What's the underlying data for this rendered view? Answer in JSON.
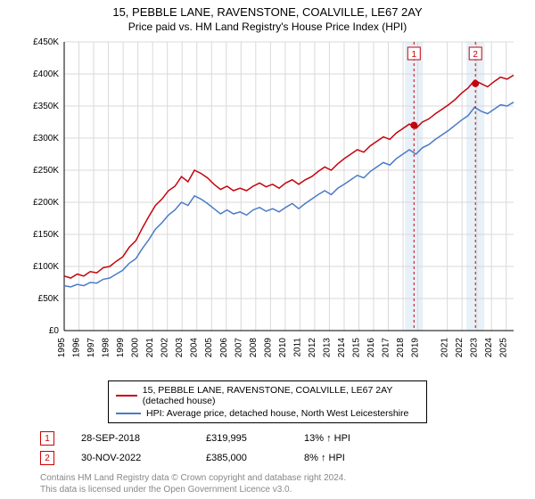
{
  "title": "15, PEBBLE LANE, RAVENSTONE, COALVILLE, LE67 2AY",
  "subtitle": "Price paid vs. HM Land Registry's House Price Index (HPI)",
  "chart": {
    "type": "line",
    "background_color": "#ffffff",
    "grid_color": "#d9d9d9",
    "axis_color": "#000000",
    "tick_font_size": 10,
    "ylabel_prefix": "£",
    "ylabel_suffix": "K",
    "ylim": [
      0,
      450
    ],
    "ytick_step": 50,
    "x_years": [
      1995,
      1996,
      1997,
      1998,
      1999,
      2000,
      2001,
      2002,
      2003,
      2004,
      2005,
      2006,
      2007,
      2008,
      2009,
      2010,
      2011,
      2012,
      2013,
      2014,
      2015,
      2016,
      2017,
      2018,
      2019,
      2021,
      2022,
      2023,
      2024,
      2025
    ],
    "series": [
      {
        "name": "15, PEBBLE LANE, RAVENSTONE, COALVILLE, LE67 2AY (detached house)",
        "color": "#c4040d",
        "line_width": 1.5,
        "values": [
          85,
          82,
          88,
          85,
          92,
          90,
          98,
          100,
          108,
          115,
          130,
          140,
          160,
          178,
          195,
          205,
          218,
          225,
          240,
          232,
          250,
          245,
          238,
          228,
          220,
          225,
          218,
          222,
          218,
          225,
          230,
          224,
          228,
          222,
          230,
          235,
          228,
          235,
          240,
          248,
          255,
          250,
          260,
          268,
          275,
          282,
          278,
          288,
          295,
          302,
          298,
          308,
          315,
          322,
          315,
          325,
          330,
          338,
          345,
          352,
          360,
          370,
          378,
          390,
          385,
          380,
          388,
          395,
          392,
          398
        ]
      },
      {
        "name": "HPI: Average price, detached house, North West Leicestershire",
        "color": "#4a7bc8",
        "line_width": 1.5,
        "values": [
          70,
          68,
          72,
          70,
          75,
          74,
          80,
          82,
          88,
          94,
          105,
          112,
          128,
          142,
          158,
          168,
          180,
          188,
          200,
          195,
          210,
          205,
          198,
          190,
          182,
          188,
          182,
          185,
          180,
          188,
          192,
          186,
          190,
          185,
          192,
          198,
          190,
          198,
          205,
          212,
          218,
          212,
          222,
          228,
          235,
          242,
          238,
          248,
          255,
          262,
          258,
          268,
          275,
          282,
          275,
          285,
          290,
          298,
          305,
          312,
          320,
          328,
          335,
          348,
          342,
          338,
          345,
          352,
          350,
          356
        ]
      }
    ],
    "markers": [
      {
        "num": "1",
        "year_frac": 2018.74,
        "value": 320,
        "band_color": "#e8f0f8",
        "dash_color": "#c4040d"
      },
      {
        "num": "2",
        "year_frac": 2022.91,
        "value": 385,
        "band_color": "#e8f0f8",
        "dash_color": "#c4040d"
      }
    ],
    "marker_box_border": "#c4040d",
    "marker_box_text": "#c4040d"
  },
  "legend": {
    "series1": "15, PEBBLE LANE, RAVENSTONE, COALVILLE, LE67 2AY (detached house)",
    "series2": "HPI: Average price, detached house, North West Leicestershire"
  },
  "sales": [
    {
      "num": "1",
      "date": "28-SEP-2018",
      "price": "£319,995",
      "pct": "13% ↑ HPI"
    },
    {
      "num": "2",
      "date": "30-NOV-2022",
      "price": "£385,000",
      "pct": "8% ↑ HPI"
    }
  ],
  "footer": {
    "line1": "Contains HM Land Registry data © Crown copyright and database right 2024.",
    "line2": "This data is licensed under the Open Government Licence v3.0."
  }
}
